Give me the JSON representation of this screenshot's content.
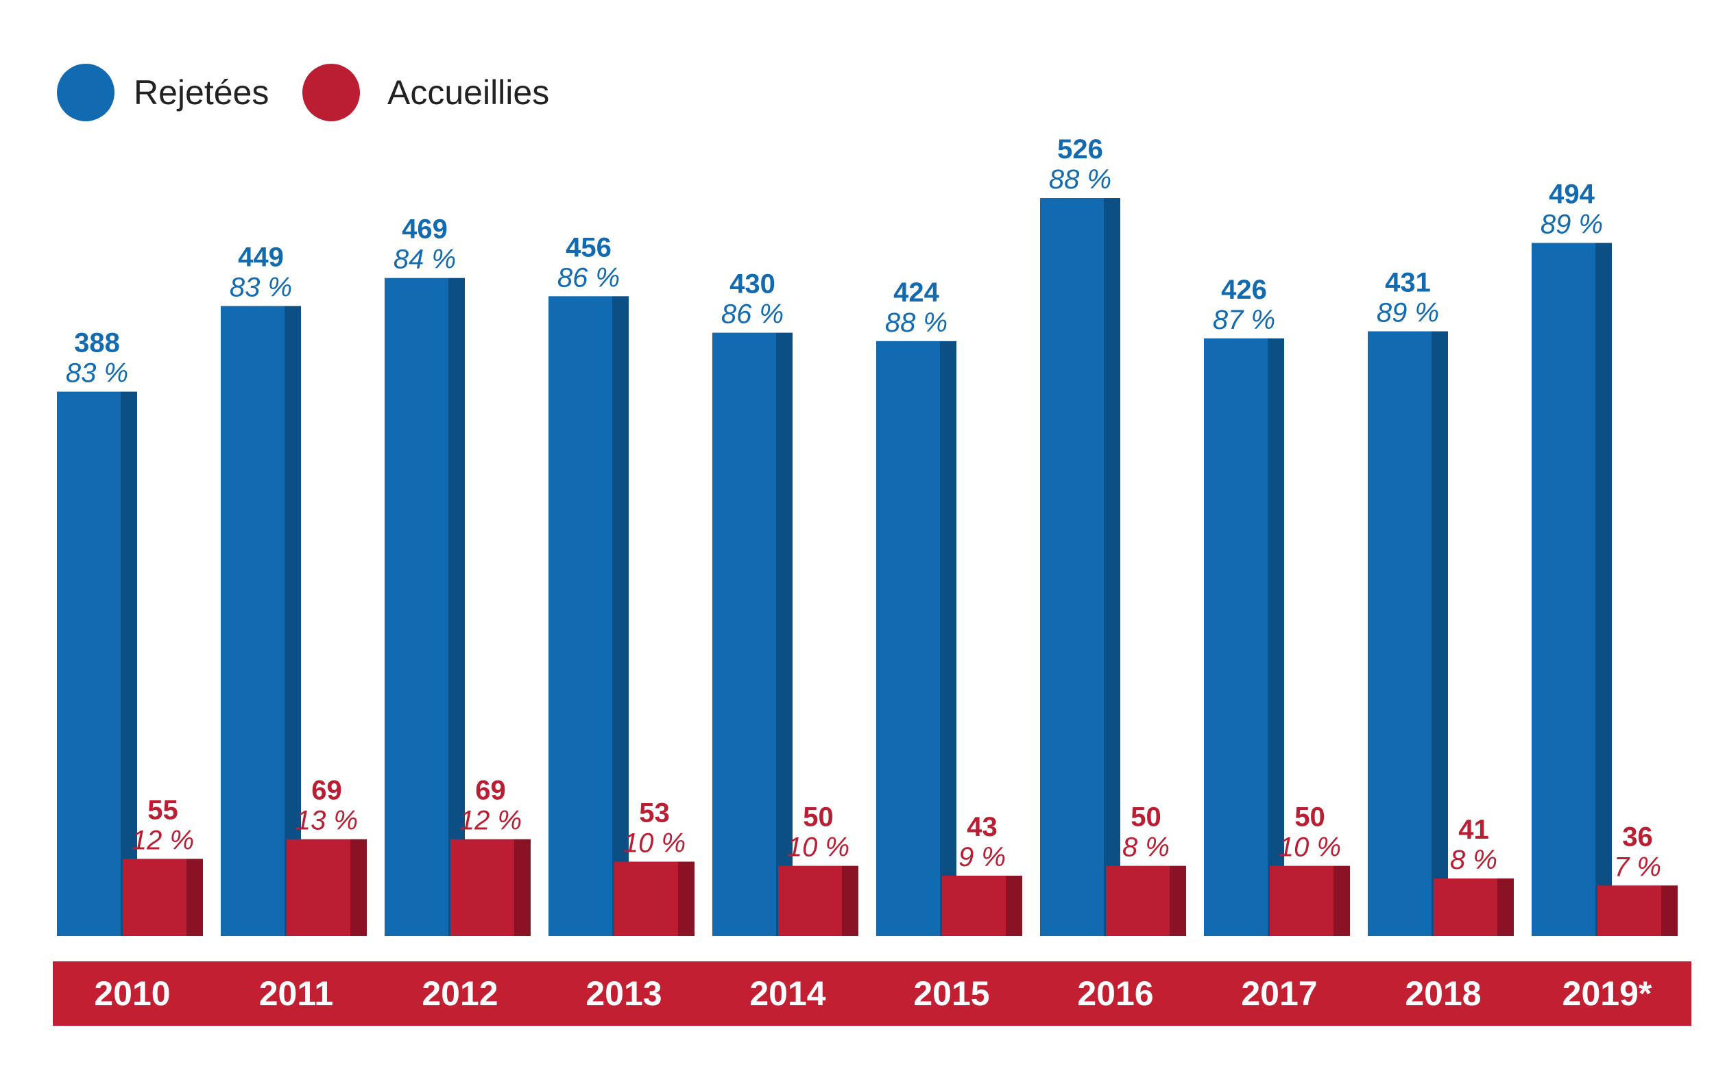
{
  "colors": {
    "rejetees": "#126bb0",
    "rejetees_side": "#0b4f84",
    "accueillies": "#bb1e32",
    "accueillies_side": "#8a1224",
    "band": "#c22032"
  },
  "chart_data": {
    "type": "bar",
    "legend_position": "top-left",
    "categories": [
      "2010",
      "2011",
      "2012",
      "2013",
      "2014",
      "2015",
      "2016",
      "2017",
      "2018",
      "2019*"
    ],
    "series": [
      {
        "name": "Rejetées",
        "values": [
          388,
          449,
          469,
          456,
          430,
          424,
          526,
          426,
          431,
          494
        ],
        "percent_labels": [
          "83 %",
          "83 %",
          "84 %",
          "86  %",
          "86 %",
          "88 %",
          "88 %",
          "87 %",
          "89 %",
          "89 %"
        ]
      },
      {
        "name": "Accueillies",
        "values": [
          55,
          69,
          69,
          53,
          50,
          43,
          50,
          50,
          41,
          36
        ],
        "percent_labels": [
          "12 %",
          "13 %",
          "12 %",
          "10 %",
          "10 %",
          "9 %",
          "8 %",
          "10 %",
          "8 %",
          "7 %"
        ]
      }
    ],
    "ylim": [
      0,
      560
    ]
  }
}
